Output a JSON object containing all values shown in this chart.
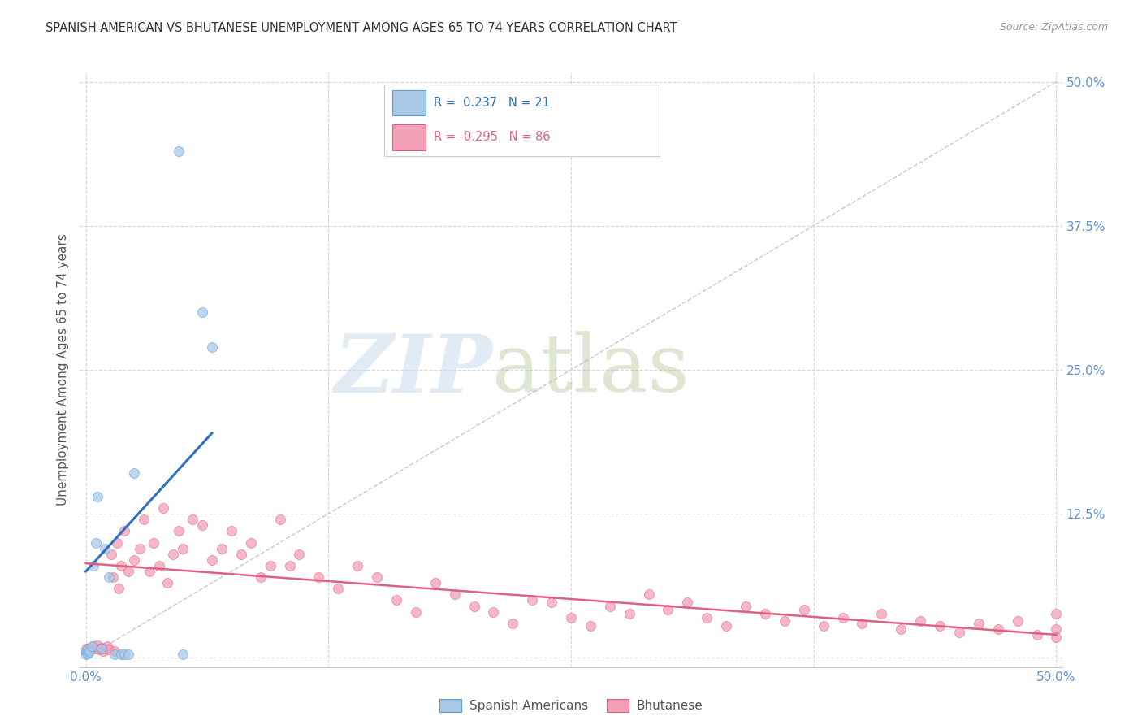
{
  "title": "SPANISH AMERICAN VS BHUTANESE UNEMPLOYMENT AMONG AGES 65 TO 74 YEARS CORRELATION CHART",
  "source": "Source: ZipAtlas.com",
  "ylabel": "Unemployment Among Ages 65 to 74 years",
  "xlim": [
    0.0,
    0.5
  ],
  "ylim": [
    0.0,
    0.5
  ],
  "xticks": [
    0.0,
    0.125,
    0.25,
    0.375,
    0.5
  ],
  "yticks": [
    0.0,
    0.125,
    0.25,
    0.375,
    0.5
  ],
  "xticklabels": [
    "0.0%",
    "",
    "",
    "",
    "50.0%"
  ],
  "yticklabels_right": [
    "",
    "12.5%",
    "25.0%",
    "37.5%",
    "50.0%"
  ],
  "spanish_r": 0.237,
  "spanish_n": 21,
  "bhutanese_r": -0.295,
  "bhutanese_n": 86,
  "spanish_color": "#a8c8e8",
  "bhutanese_color": "#f4a0b8",
  "spanish_edge_color": "#5a9fd4",
  "bhutanese_edge_color": "#e06080",
  "spanish_line_color": "#3070c0",
  "bhutanese_line_color": "#e06080",
  "diag_color": "#c8c8c8",
  "grid_color": "#d8d8d8",
  "tick_label_color": "#6090cc",
  "title_color": "#333333",
  "source_color": "#999999",
  "ylabel_color": "#555555",
  "spanish_x": [
    0.0,
    0.0,
    0.001,
    0.001,
    0.002,
    0.003,
    0.004,
    0.005,
    0.006,
    0.008,
    0.01,
    0.012,
    0.015,
    0.018,
    0.02,
    0.022,
    0.025,
    0.048,
    0.05,
    0.06,
    0.065
  ],
  "spanish_y": [
    0.003,
    0.006,
    0.004,
    0.007,
    0.005,
    0.01,
    0.08,
    0.1,
    0.14,
    0.008,
    0.095,
    0.07,
    0.003,
    0.003,
    0.003,
    0.003,
    0.16,
    0.44,
    0.003,
    0.3,
    0.27
  ],
  "bhutanese_x": [
    0.0,
    0.0,
    0.001,
    0.002,
    0.003,
    0.004,
    0.005,
    0.006,
    0.007,
    0.008,
    0.009,
    0.01,
    0.011,
    0.012,
    0.013,
    0.014,
    0.015,
    0.016,
    0.017,
    0.018,
    0.02,
    0.022,
    0.025,
    0.028,
    0.03,
    0.033,
    0.035,
    0.038,
    0.04,
    0.042,
    0.045,
    0.048,
    0.05,
    0.055,
    0.06,
    0.065,
    0.07,
    0.075,
    0.08,
    0.085,
    0.09,
    0.095,
    0.1,
    0.105,
    0.11,
    0.12,
    0.13,
    0.14,
    0.15,
    0.16,
    0.17,
    0.18,
    0.19,
    0.2,
    0.21,
    0.22,
    0.23,
    0.24,
    0.25,
    0.26,
    0.27,
    0.28,
    0.29,
    0.3,
    0.31,
    0.32,
    0.33,
    0.34,
    0.35,
    0.36,
    0.37,
    0.38,
    0.39,
    0.4,
    0.41,
    0.42,
    0.43,
    0.44,
    0.45,
    0.46,
    0.47,
    0.48,
    0.49,
    0.5,
    0.5,
    0.5
  ],
  "bhutanese_y": [
    0.005,
    0.008,
    0.006,
    0.009,
    0.007,
    0.01,
    0.008,
    0.011,
    0.007,
    0.009,
    0.006,
    0.008,
    0.01,
    0.007,
    0.09,
    0.07,
    0.006,
    0.1,
    0.06,
    0.08,
    0.11,
    0.075,
    0.085,
    0.095,
    0.12,
    0.075,
    0.1,
    0.08,
    0.13,
    0.065,
    0.09,
    0.11,
    0.095,
    0.12,
    0.115,
    0.085,
    0.095,
    0.11,
    0.09,
    0.1,
    0.07,
    0.08,
    0.12,
    0.08,
    0.09,
    0.07,
    0.06,
    0.08,
    0.07,
    0.05,
    0.04,
    0.065,
    0.055,
    0.045,
    0.04,
    0.03,
    0.05,
    0.048,
    0.035,
    0.028,
    0.045,
    0.038,
    0.055,
    0.042,
    0.048,
    0.035,
    0.028,
    0.045,
    0.038,
    0.032,
    0.042,
    0.028,
    0.035,
    0.03,
    0.038,
    0.025,
    0.032,
    0.028,
    0.022,
    0.03,
    0.025,
    0.032,
    0.02,
    0.038,
    0.025,
    0.018
  ],
  "sp_line_x": [
    0.0,
    0.065
  ],
  "sp_line_y": [
    0.075,
    0.195
  ],
  "bh_line_x": [
    0.0,
    0.5
  ],
  "bh_line_y": [
    0.082,
    0.02
  ]
}
